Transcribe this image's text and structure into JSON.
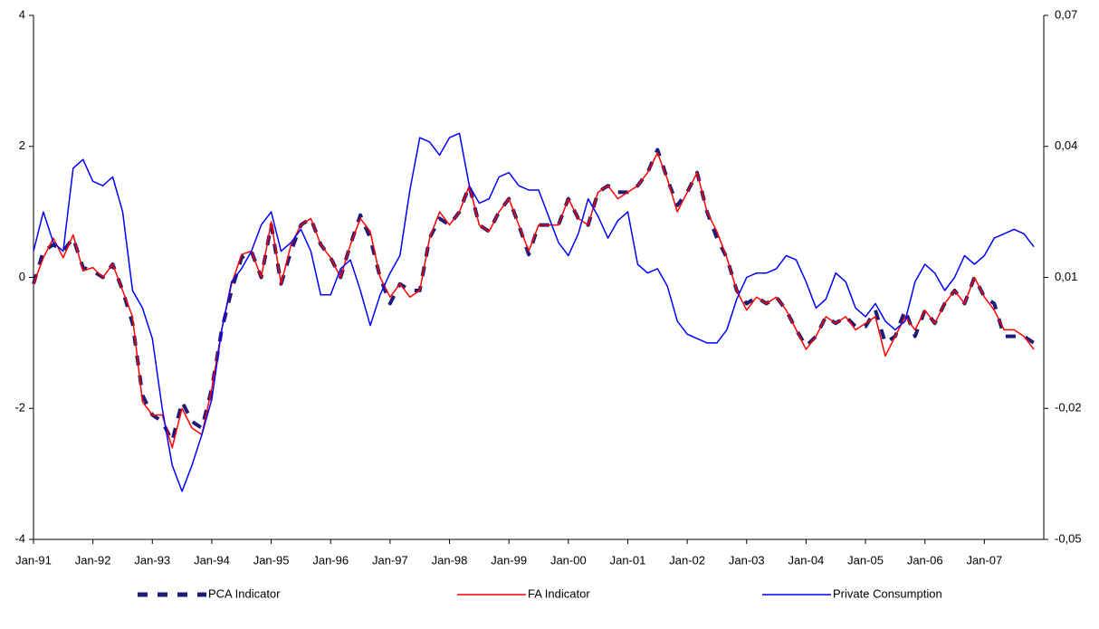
{
  "chart_data": {
    "type": "line",
    "categories": [
      "Jan-91",
      null,
      null,
      null,
      null,
      null,
      "Jan-92",
      null,
      null,
      null,
      null,
      null,
      "Jan-93",
      null,
      null,
      null,
      null,
      null,
      "Jan-94",
      null,
      null,
      null,
      null,
      null,
      "Jan-95",
      null,
      null,
      null,
      null,
      null,
      "Jan-96",
      null,
      null,
      null,
      null,
      null,
      "Jan-97",
      null,
      null,
      null,
      null,
      null,
      "Jan-98",
      null,
      null,
      null,
      null,
      null,
      "Jan-99",
      null,
      null,
      null,
      null,
      null,
      "Jan-00",
      null,
      null,
      null,
      null,
      null,
      "Jan-01",
      null,
      null,
      null,
      null,
      null,
      "Jan-02",
      null,
      null,
      null,
      null,
      null,
      "Jan-03",
      null,
      null,
      null,
      null,
      null,
      "Jan-04",
      null,
      null,
      null,
      null,
      null,
      "Jan-05",
      null,
      null,
      null,
      null,
      null,
      "Jan-06",
      null,
      null,
      null,
      null,
      null,
      "Jan-07",
      null,
      null,
      null,
      null,
      null
    ],
    "ylim": [
      -4,
      4
    ],
    "yticks": [
      -4,
      -2,
      0,
      2,
      4
    ],
    "y2lim": [
      -0.05,
      0.07
    ],
    "y2ticks": [
      {
        "value": -0.05,
        "label": "-0,05"
      },
      {
        "value": -0.02,
        "label": "-0,02"
      },
      {
        "value": 0.01,
        "label": "0,01"
      },
      {
        "value": 0.04,
        "label": "0,04"
      },
      {
        "value": 0.07,
        "label": "0,07"
      }
    ],
    "legend": "bottom",
    "series": [
      {
        "name": "PCA Indicator",
        "color": "#1c1c78",
        "dashed": true,
        "values": [
          -0.1,
          0.4,
          0.5,
          0.4,
          0.6,
          0.15,
          0.1,
          0.0,
          0.2,
          -0.2,
          -0.7,
          -1.8,
          -2.1,
          -2.2,
          -2.5,
          -1.9,
          -2.2,
          -2.3,
          -1.7,
          -0.8,
          -0.2,
          0.3,
          0.4,
          0.0,
          0.8,
          -0.1,
          0.4,
          0.8,
          0.9,
          0.5,
          0.3,
          0.0,
          0.5,
          0.95,
          0.6,
          0.0,
          -0.4,
          -0.1,
          -0.2,
          -0.2,
          0.6,
          0.9,
          0.8,
          1.0,
          1.4,
          0.8,
          0.7,
          1.0,
          1.2,
          0.8,
          0.35,
          0.8,
          0.8,
          0.8,
          1.2,
          0.9,
          0.8,
          1.3,
          1.4,
          1.3,
          1.3,
          1.4,
          1.6,
          1.95,
          1.5,
          1.1,
          1.3,
          1.6,
          1.0,
          0.6,
          0.3,
          -0.2,
          -0.4,
          -0.3,
          -0.4,
          -0.3,
          -0.5,
          -0.8,
          -1.05,
          -0.9,
          -0.6,
          -0.7,
          -0.6,
          -0.75,
          -0.75,
          -0.5,
          -1.0,
          -0.9,
          -0.5,
          -0.9,
          -0.5,
          -0.7,
          -0.4,
          -0.2,
          -0.4,
          0.0,
          -0.3,
          -0.4,
          -0.9,
          -0.9,
          -0.9,
          -1.0
        ]
      },
      {
        "name": "FA Indicator",
        "color": "#ff0000",
        "values": [
          -0.1,
          0.3,
          0.6,
          0.3,
          0.65,
          0.1,
          0.15,
          0.0,
          0.2,
          -0.2,
          -0.6,
          -1.9,
          -2.1,
          -2.1,
          -2.6,
          -2.0,
          -2.3,
          -2.4,
          -1.7,
          -0.8,
          -0.1,
          0.35,
          0.4,
          0.0,
          0.85,
          -0.1,
          0.5,
          0.8,
          0.9,
          0.5,
          0.3,
          0.0,
          0.5,
          0.9,
          0.7,
          0.0,
          -0.3,
          -0.1,
          -0.3,
          -0.2,
          0.6,
          1.0,
          0.8,
          1.0,
          1.4,
          0.8,
          0.7,
          1.0,
          1.2,
          0.8,
          0.4,
          0.8,
          0.8,
          0.8,
          1.2,
          0.9,
          0.8,
          1.3,
          1.4,
          1.2,
          1.3,
          1.4,
          1.6,
          1.9,
          1.5,
          1.0,
          1.3,
          1.6,
          1.0,
          0.7,
          0.3,
          -0.2,
          -0.5,
          -0.3,
          -0.4,
          -0.3,
          -0.5,
          -0.8,
          -1.1,
          -0.9,
          -0.6,
          -0.7,
          -0.6,
          -0.8,
          -0.7,
          -0.6,
          -1.2,
          -0.9,
          -0.6,
          -0.8,
          -0.5,
          -0.7,
          -0.4,
          -0.2,
          -0.4,
          0.0,
          -0.3,
          -0.5,
          -0.8,
          -0.8,
          -0.9,
          -1.1
        ]
      },
      {
        "name": "Private Consumption",
        "color": "#0000ff",
        "axis": "y2",
        "values": [
          0.016,
          0.025,
          0.018,
          0.016,
          0.035,
          0.037,
          0.032,
          0.031,
          0.033,
          0.025,
          0.007,
          0.003,
          -0.004,
          -0.02,
          -0.033,
          -0.039,
          -0.033,
          -0.026,
          -0.018,
          -0.002,
          0.009,
          0.012,
          0.016,
          0.022,
          0.025,
          0.016,
          0.018,
          0.021,
          0.016,
          0.006,
          0.006,
          0.012,
          0.014,
          0.007,
          -0.001,
          0.006,
          0.011,
          0.015,
          0.03,
          0.042,
          0.041,
          0.038,
          0.042,
          0.043,
          0.031,
          0.027,
          0.028,
          0.033,
          0.034,
          0.031,
          0.03,
          0.03,
          0.024,
          0.018,
          0.015,
          0.02,
          0.028,
          0.024,
          0.019,
          0.023,
          0.025,
          0.013,
          0.011,
          0.012,
          0.008,
          0.0,
          -0.003,
          -0.004,
          -0.005,
          -0.005,
          -0.002,
          0.005,
          0.01,
          0.011,
          0.011,
          0.012,
          0.015,
          0.014,
          0.009,
          0.003,
          0.005,
          0.011,
          0.009,
          0.003,
          0.001,
          0.004,
          0.0,
          -0.002,
          0.0,
          0.009,
          0.013,
          0.011,
          0.007,
          0.01,
          0.015,
          0.013,
          0.015,
          0.019,
          0.02,
          0.021,
          0.02,
          0.017
        ]
      }
    ]
  }
}
